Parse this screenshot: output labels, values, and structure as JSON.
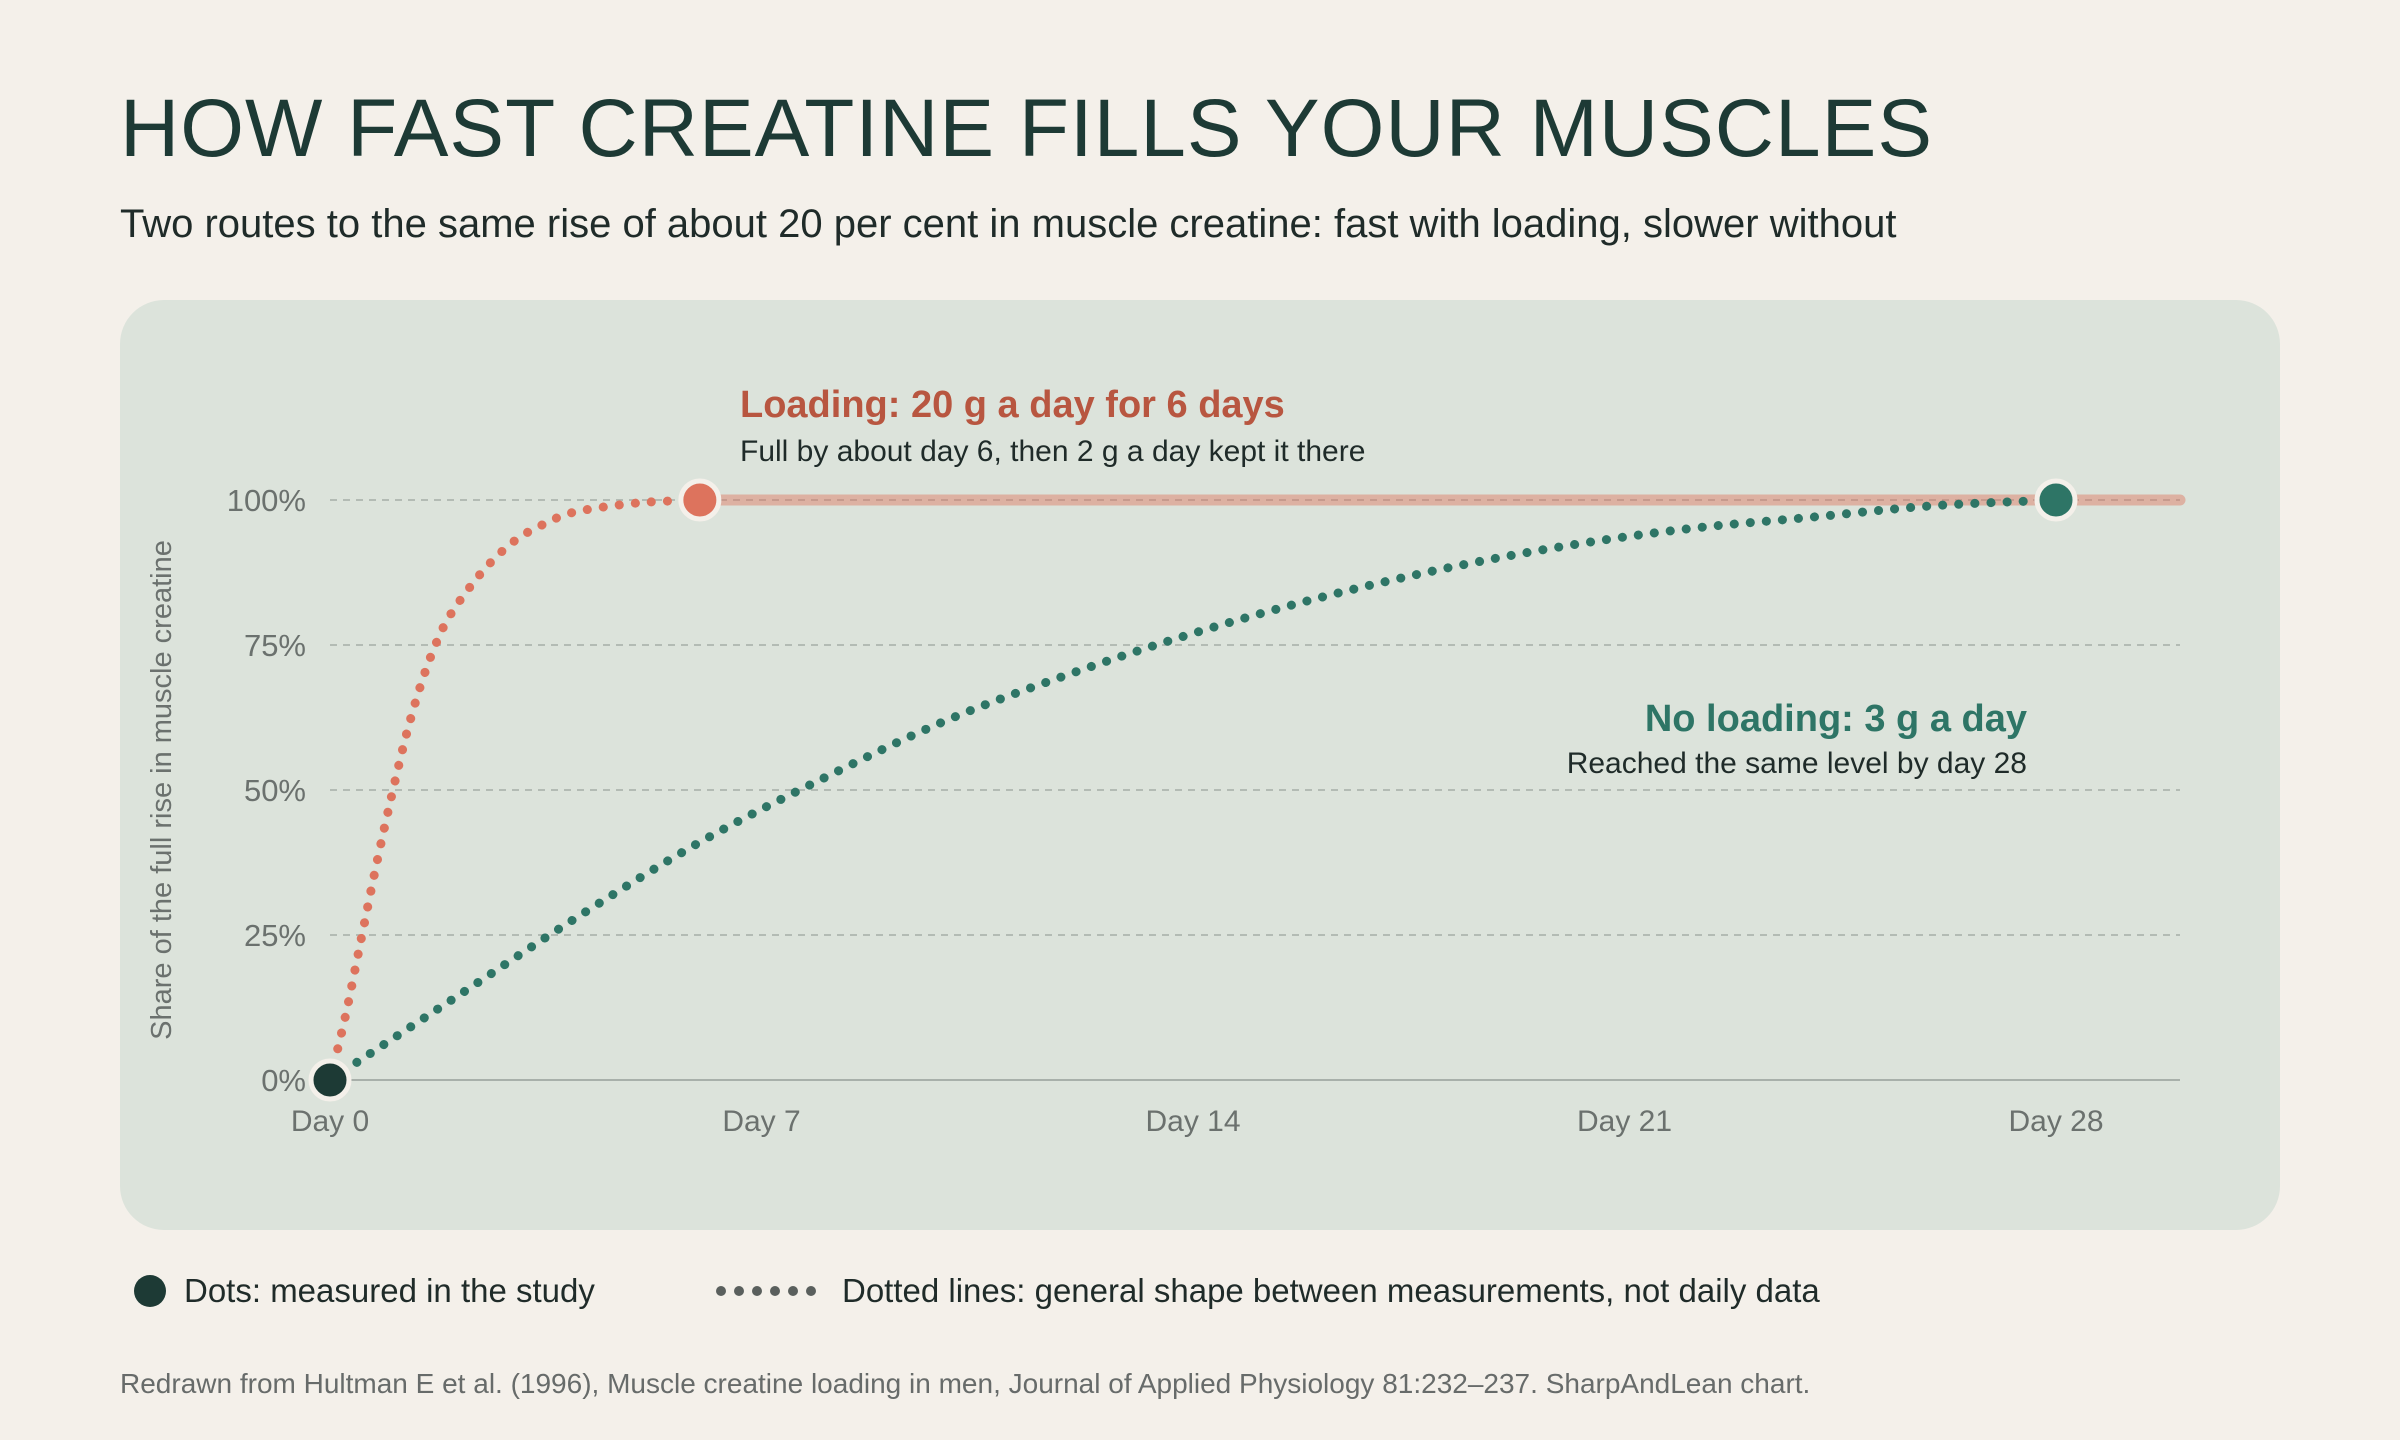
{
  "header": {
    "title": "HOW FAST CREATINE FILLS YOUR MUSCLES",
    "subtitle": "Two routes to the same rise of about 20 per cent in muscle creatine: fast with loading, slower without"
  },
  "chart_data": {
    "type": "line",
    "ylabel": "Share of the full rise in muscle creatine",
    "xlabel": "",
    "x_ticks": [
      {
        "value": 0,
        "label": "Day 0"
      },
      {
        "value": 7,
        "label": "Day 7"
      },
      {
        "value": 14,
        "label": "Day 14"
      },
      {
        "value": 21,
        "label": "Day 21"
      },
      {
        "value": 28,
        "label": "Day 28"
      }
    ],
    "y_ticks": [
      {
        "value": 0,
        "label": "0%"
      },
      {
        "value": 25,
        "label": "25%"
      },
      {
        "value": 50,
        "label": "50%"
      },
      {
        "value": 75,
        "label": "75%"
      },
      {
        "value": 100,
        "label": "100%"
      }
    ],
    "xlim": [
      0,
      30
    ],
    "ylim": [
      0,
      100
    ],
    "grid": true,
    "series": [
      {
        "id": "loading",
        "color": "#dd735d",
        "label_color": "#b85640",
        "annotation_title": "Loading: 20 g a day for 6 days",
        "annotation_text": "Full by about day 6, then 2 g a day kept it there",
        "curve": [
          [
            0,
            0
          ],
          [
            0.25,
            11
          ],
          [
            0.5,
            24
          ],
          [
            0.75,
            37
          ],
          [
            1,
            49
          ],
          [
            1.25,
            60
          ],
          [
            1.5,
            69
          ],
          [
            1.75,
            76
          ],
          [
            2,
            81
          ],
          [
            2.5,
            88
          ],
          [
            3,
            93
          ],
          [
            3.5,
            96
          ],
          [
            4,
            98
          ],
          [
            5,
            99.5
          ],
          [
            6,
            100
          ]
        ],
        "maintenance": {
          "from": 6,
          "to": 30,
          "value": 100
        },
        "measured": [
          {
            "day": 6,
            "value": 100
          }
        ]
      },
      {
        "id": "no-loading",
        "color": "#2e7566",
        "label_color": "#2e7566",
        "annotation_title": "No loading: 3 g a day",
        "annotation_text": "Reached the same level by day 28",
        "curve": [
          [
            0,
            0
          ],
          [
            2,
            14
          ],
          [
            4,
            28
          ],
          [
            6,
            41
          ],
          [
            8,
            52
          ],
          [
            10,
            62
          ],
          [
            12,
            70
          ],
          [
            14,
            77
          ],
          [
            16,
            83
          ],
          [
            18,
            88
          ],
          [
            20,
            92
          ],
          [
            22,
            95
          ],
          [
            24,
            97
          ],
          [
            26,
            99
          ],
          [
            28,
            100
          ]
        ],
        "measured": [
          {
            "day": 28,
            "value": 100
          }
        ]
      }
    ],
    "baseline_point": {
      "day": 0,
      "value": 0,
      "color": "#1d3a35"
    }
  },
  "legend": {
    "measured_label": "Dots: measured in the study",
    "shape_label": "Dotted lines: general shape between measurements, not daily data"
  },
  "source": "Redrawn from Hultman E et al. (1996), Muscle creatine loading in men, Journal of Applied Physiology 81:232–237. SharpAndLean chart."
}
